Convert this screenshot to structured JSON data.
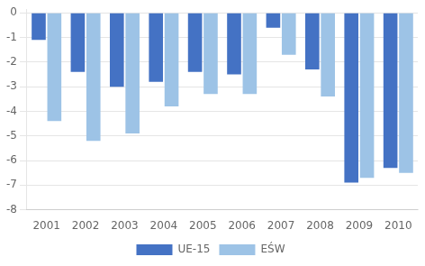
{
  "chart_data": {
    "type": "bar",
    "categories": [
      "2001",
      "2002",
      "2003",
      "2004",
      "2005",
      "2006",
      "2007",
      "2008",
      "2009",
      "2010"
    ],
    "series": [
      {
        "name": "UE-15",
        "color": "#4472C4",
        "values": [
          -1.1,
          -2.4,
          -3.0,
          -2.8,
          -2.4,
          -2.5,
          -0.6,
          -2.3,
          -6.9,
          -6.3
        ]
      },
      {
        "name": "EŚW",
        "color": "#9DC3E6",
        "values": [
          -4.4,
          -5.2,
          -4.9,
          -3.8,
          -3.3,
          -3.3,
          -1.7,
          -3.4,
          -6.7,
          -6.5
        ]
      }
    ],
    "ylim": [
      -8,
      0.15
    ],
    "yticks": [
      0,
      -1,
      -2,
      -3,
      -4,
      -5,
      -6,
      -7,
      -8
    ],
    "grid": true,
    "legend": "bottom"
  }
}
